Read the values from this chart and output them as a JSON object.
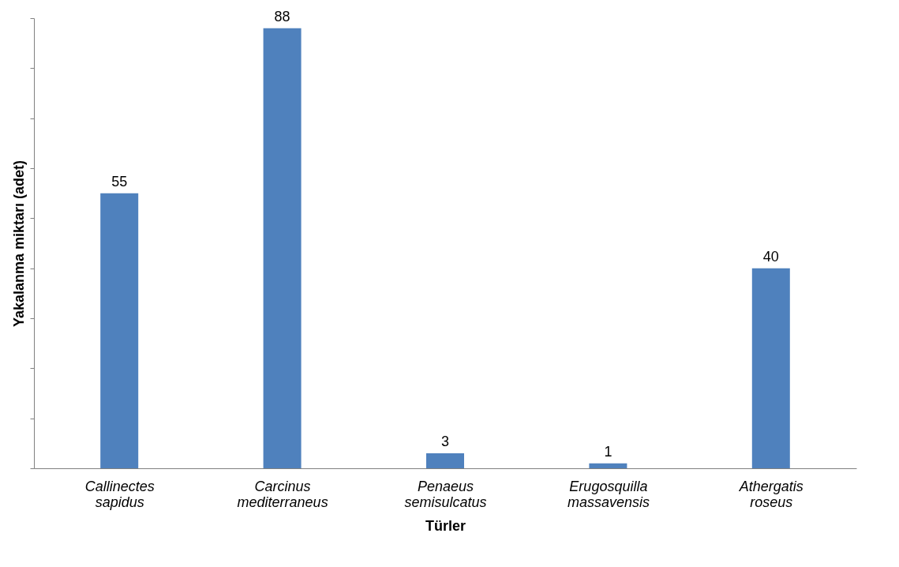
{
  "chart_data": {
    "type": "bar",
    "xlabel": "Türler",
    "ylabel": "Yakalanma miktarı (adet)",
    "categories": [
      "Callinectes sapidus",
      "Carcinus mediterraneus",
      "Penaeus semisulcatus",
      "Erugosquilla massavensis",
      "Athergatis roseus"
    ],
    "values": [
      55,
      88,
      3,
      1,
      40
    ],
    "color": "#4f81bd",
    "ylim": [
      0,
      90
    ],
    "yticks": [
      {
        "value": 0,
        "label": null
      },
      {
        "value": 10,
        "label": null
      },
      {
        "value": 20,
        "label": null
      },
      {
        "value": 30,
        "label": null
      },
      {
        "value": 40,
        "label": null
      },
      {
        "value": 50,
        "label": null
      },
      {
        "value": 60,
        "label": null
      },
      {
        "value": 70,
        "label": null
      },
      {
        "value": 80,
        "label": null
      },
      {
        "value": 90,
        "label": null
      }
    ],
    "tick_labels": "x",
    "data_labels": true,
    "grid": false
  }
}
